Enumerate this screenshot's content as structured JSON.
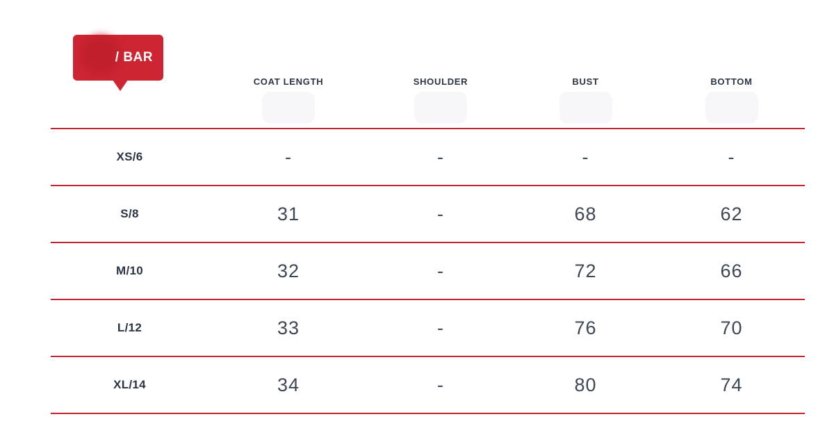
{
  "badge": {
    "label": "/ BAR",
    "bg_color": "#cd2532",
    "circle_color": "#bf1e2b",
    "text_color": "#ffffff"
  },
  "table": {
    "line_color": "#c5222d",
    "header_text_color": "#2b3442",
    "value_text_color": "#3e4754",
    "columns": [
      "COAT LENGTH",
      "SHOULDER",
      "BUST",
      "BOTTOM"
    ],
    "rows": [
      {
        "size": "XS/6",
        "values": [
          "-",
          "-",
          "-",
          "-"
        ]
      },
      {
        "size": "S/8",
        "values": [
          "31",
          "-",
          "68",
          "62"
        ]
      },
      {
        "size": "M/10",
        "values": [
          "32",
          "-",
          "72",
          "66"
        ]
      },
      {
        "size": "L/12",
        "values": [
          "33",
          "-",
          "76",
          "70"
        ]
      },
      {
        "size": "XL/14",
        "values": [
          "34",
          "-",
          "80",
          "74"
        ]
      }
    ]
  }
}
